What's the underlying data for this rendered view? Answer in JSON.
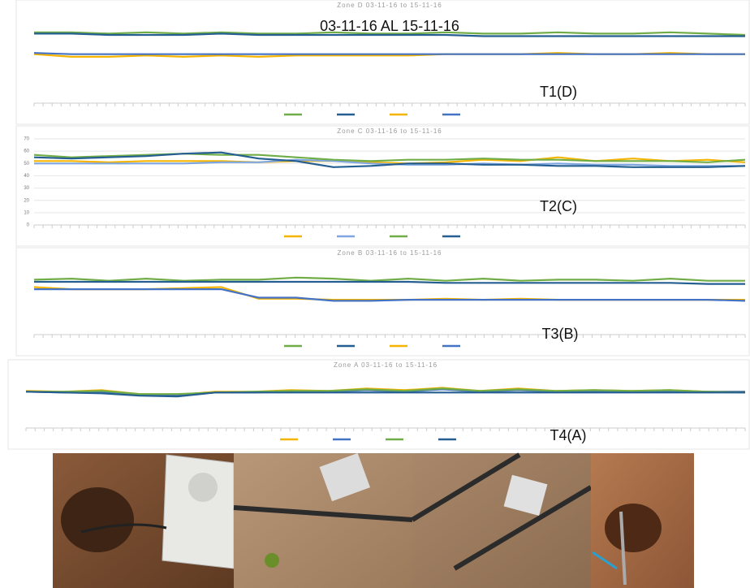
{
  "chart_data": [
    {
      "type": "line",
      "title": "Zone D 03-11-16 to 15-11-16",
      "annotations": [
        "03-11-16 AL 15-11-16",
        "T1(D)"
      ],
      "ylim": [
        0,
        70
      ],
      "grid": false,
      "series": [
        {
          "color": "#70ad47",
          "values": [
            55,
            55,
            54,
            55,
            54,
            55,
            54,
            54,
            55,
            54,
            54,
            55,
            54,
            54,
            55,
            54,
            54,
            55,
            54,
            53
          ]
        },
        {
          "color": "#255e91",
          "values": [
            54,
            54,
            53,
            53,
            53,
            54,
            53,
            53,
            53,
            53,
            53,
            53,
            52,
            52,
            52,
            52,
            52,
            52,
            52,
            52
          ]
        },
        {
          "color": "#f5b400",
          "values": [
            38,
            36,
            36,
            37,
            36,
            37,
            36,
            37,
            37,
            37,
            37,
            38,
            38,
            38,
            39,
            38,
            38,
            39,
            38,
            38
          ]
        },
        {
          "color": "#4472c4",
          "values": [
            39,
            38,
            38,
            38,
            38,
            38,
            38,
            38,
            38,
            38,
            38,
            38,
            38,
            38,
            38,
            38,
            38,
            38,
            38,
            38
          ]
        }
      ]
    },
    {
      "type": "line",
      "title": "Zone C 03-11-16 to 15-11-16",
      "annotations": [
        "T2(C)"
      ],
      "ylim": [
        0,
        70
      ],
      "yticks": [
        0,
        10,
        20,
        30,
        40,
        50,
        60,
        70
      ],
      "grid": true,
      "series": [
        {
          "color": "#f5b400",
          "values": [
            52,
            52,
            51,
            52,
            52,
            52,
            51,
            52,
            52,
            51,
            50,
            51,
            53,
            52,
            55,
            52,
            54,
            52,
            53,
            51
          ]
        },
        {
          "color": "#7ea6e0",
          "values": [
            50,
            50,
            50,
            50,
            50,
            51,
            51,
            53,
            52,
            50,
            49,
            49,
            50,
            49,
            50,
            49,
            49,
            48,
            48,
            48
          ]
        },
        {
          "color": "#70ad47",
          "values": [
            57,
            55,
            56,
            57,
            58,
            57,
            57,
            55,
            53,
            52,
            53,
            53,
            54,
            53,
            53,
            52,
            52,
            52,
            51,
            53
          ]
        },
        {
          "color": "#255e91",
          "values": [
            55,
            54,
            55,
            56,
            58,
            59,
            54,
            52,
            47,
            48,
            50,
            50,
            49,
            49,
            48,
            48,
            47,
            47,
            47,
            48
          ]
        }
      ]
    },
    {
      "type": "line",
      "title": "Zone B 03-11-16 to 15-11-16",
      "annotations": [
        "T3(B)"
      ],
      "ylim": [
        0,
        70
      ],
      "grid": false,
      "series": [
        {
          "color": "#70ad47",
          "values": [
            52,
            53,
            51,
            53,
            51,
            52,
            52,
            54,
            53,
            51,
            53,
            51,
            53,
            51,
            52,
            52,
            51,
            53,
            51,
            51
          ]
        },
        {
          "color": "#255e91",
          "values": [
            50,
            50,
            50,
            50,
            50,
            50,
            50,
            50,
            50,
            50,
            50,
            49,
            49,
            49,
            49,
            49,
            49,
            49,
            48,
            48
          ]
        },
        {
          "color": "#f5b400",
          "values": [
            45,
            43,
            43,
            43,
            44,
            45,
            34,
            34,
            33,
            33,
            33,
            34,
            33,
            34,
            33,
            33,
            33,
            33,
            33,
            33
          ]
        },
        {
          "color": "#4472c4",
          "values": [
            43,
            43,
            43,
            43,
            43,
            43,
            35,
            35,
            32,
            32,
            33,
            33,
            33,
            33,
            33,
            33,
            33,
            33,
            33,
            32
          ]
        }
      ]
    },
    {
      "type": "line",
      "title": "Zone A 03-11-16 to 15-11-16",
      "annotations": [
        "T4(A)"
      ],
      "ylim": [
        0,
        70
      ],
      "grid": false,
      "series": [
        {
          "color": "#f5b400",
          "values": [
            47,
            46,
            48,
            43,
            42,
            46,
            46,
            48,
            47,
            50,
            48,
            51,
            47,
            50,
            47,
            48,
            47,
            48,
            46,
            46
          ]
        },
        {
          "color": "#4472c4",
          "values": [
            46,
            45,
            46,
            42,
            41,
            45,
            45,
            46,
            46,
            48,
            46,
            49,
            46,
            48,
            46,
            47,
            46,
            47,
            46,
            46
          ]
        },
        {
          "color": "#70ad47",
          "values": [
            46,
            46,
            47,
            43,
            43,
            45,
            46,
            47,
            47,
            49,
            47,
            50,
            47,
            49,
            47,
            48,
            47,
            48,
            46,
            45
          ]
        },
        {
          "color": "#255e91",
          "values": [
            46,
            45,
            44,
            41,
            40,
            45,
            45,
            45,
            45,
            45,
            45,
            45,
            45,
            45,
            45,
            45,
            45,
            45,
            45,
            45
          ]
        }
      ]
    }
  ]
}
